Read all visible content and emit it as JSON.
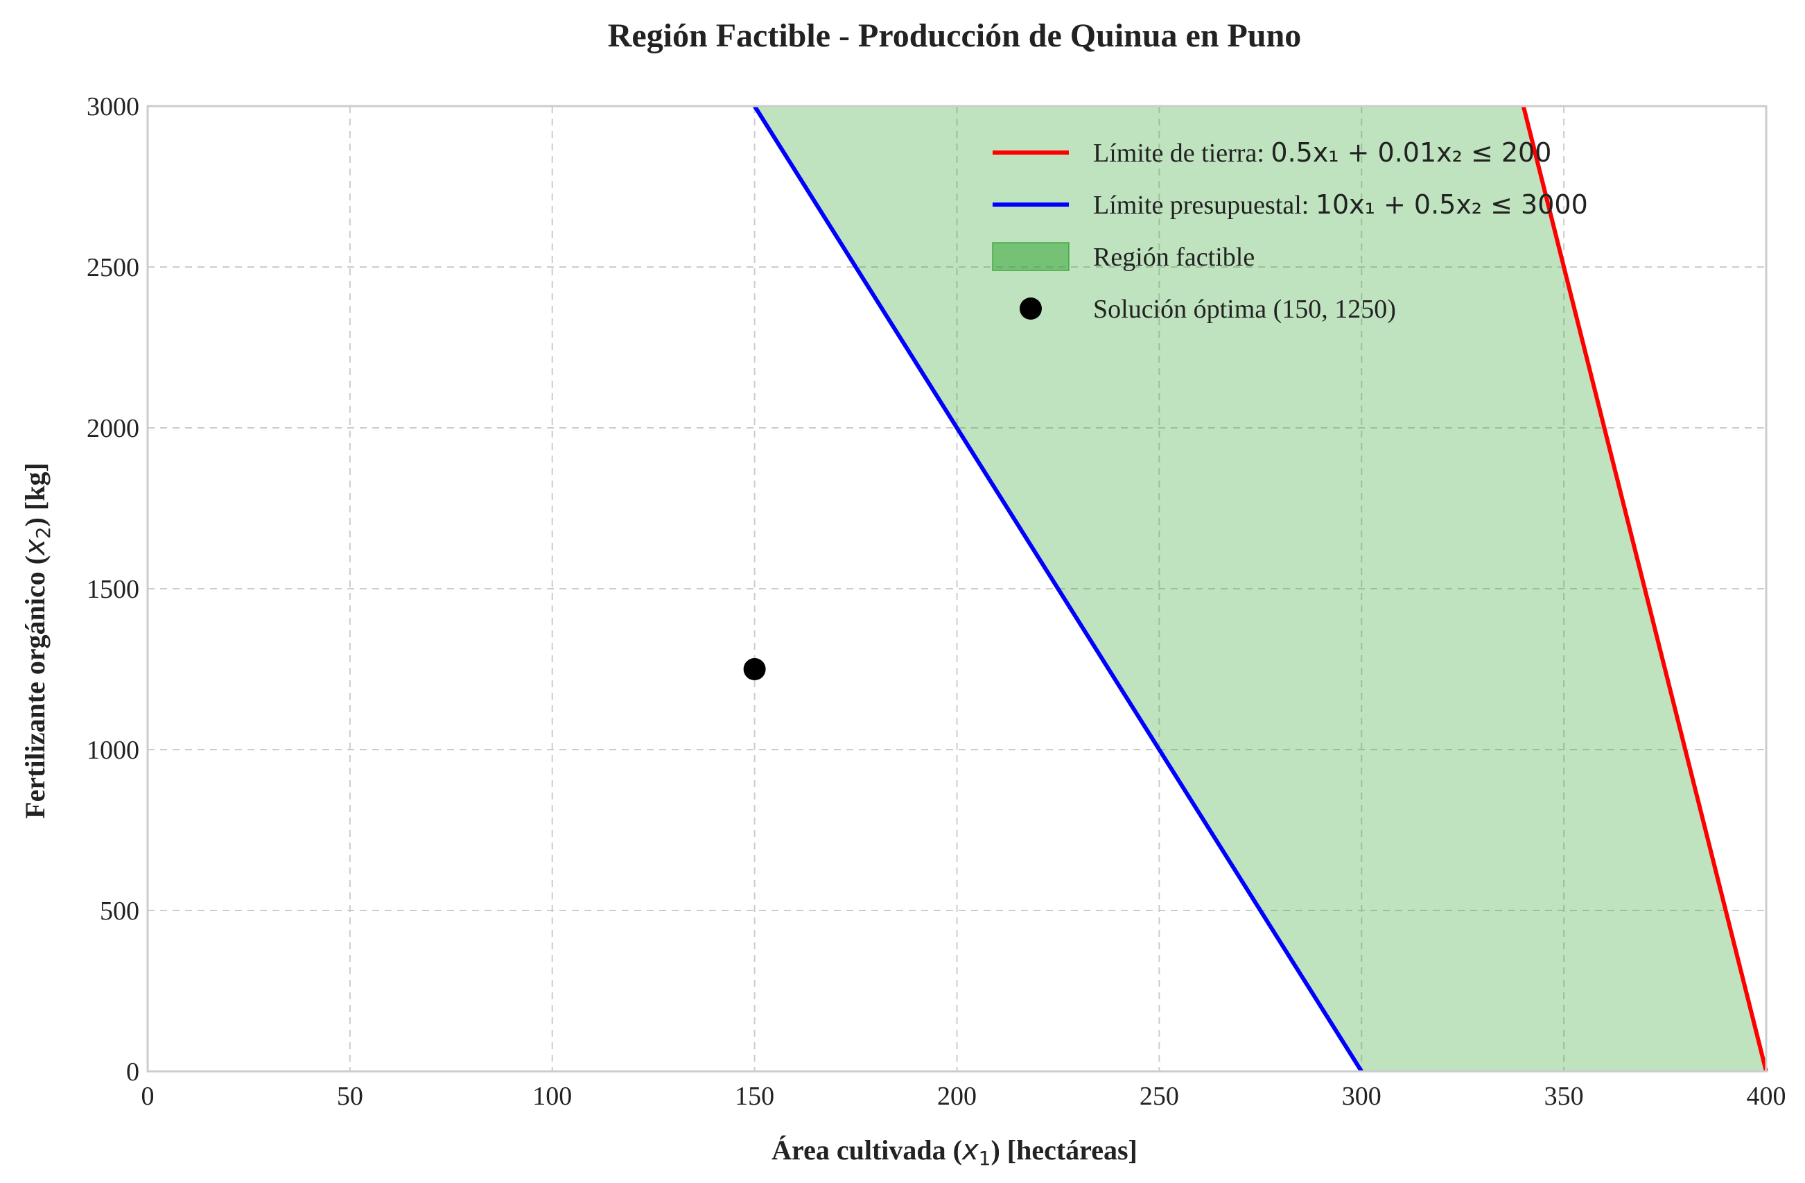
{
  "chart_data": {
    "type": "line",
    "title": "Región Factible - Producción de Quinua en Puno",
    "xlabel_parts": [
      "Área cultivada (",
      "x",
      "1",
      ") [hectáreas]"
    ],
    "ylabel_parts": [
      "Fertilizante orgánico (",
      "x",
      "2",
      ") [kg]"
    ],
    "xlim": [
      0,
      400
    ],
    "ylim": [
      0,
      3000
    ],
    "xticks": [
      0,
      50,
      100,
      150,
      200,
      250,
      300,
      350,
      400
    ],
    "yticks": [
      0,
      500,
      1000,
      1500,
      2000,
      2500,
      3000
    ],
    "grid": true,
    "legend_position": "top-right",
    "series": [
      {
        "id": "land",
        "name": "Límite de tierra: ",
        "math": "0.5x₁ + 0.01x₂ ≤ 200",
        "kind": "line",
        "color": "#ff0000",
        "x": [
          340,
          400
        ],
        "y": [
          3000,
          0
        ]
      },
      {
        "id": "budget",
        "name": "Límite presupuestal: ",
        "math": "10x₁ + 0.5x₂ ≤ 3000",
        "kind": "line",
        "color": "#0000ff",
        "x": [
          150,
          300
        ],
        "y": [
          3000,
          0
        ]
      },
      {
        "id": "feasible",
        "name": "Región factible",
        "kind": "area",
        "color": "#2ca02c",
        "alpha": 0.3,
        "polygon": [
          [
            150,
            3000
          ],
          [
            340,
            3000
          ],
          [
            400,
            0
          ],
          [
            300,
            0
          ]
        ]
      },
      {
        "id": "optimum",
        "name": "Solución óptima (150, 1250)",
        "kind": "point",
        "color": "#000000",
        "x": [
          150
        ],
        "y": [
          1250
        ]
      }
    ]
  }
}
